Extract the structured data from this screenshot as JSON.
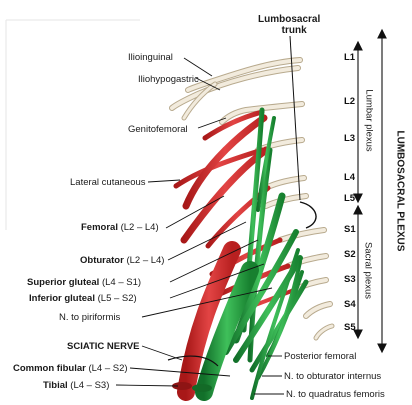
{
  "title": {
    "line1": "Lumbosacral",
    "line2": "trunk"
  },
  "segments": [
    "L1",
    "L2",
    "L3",
    "L4",
    "L5",
    "S1",
    "S2",
    "S3",
    "S4",
    "S5"
  ],
  "side_labels": {
    "lumbar_plexus": "Lumbar plexus",
    "sacral_plexus": "Sacral plexus",
    "lumbosacral_plexus": "LUMBOSACRAL PLEXUS"
  },
  "left_labels": {
    "ilioinguinal": "Ilioinguinal",
    "iliohypogastric": "Iliohypogastric",
    "genitofemoral": "Genitofemoral",
    "lateral_cutaneous": "Lateral cutaneous",
    "femoral_name": "Femoral",
    "femoral_roots": " (L2 – L4)",
    "obturator_name": "Obturator",
    "obturator_roots": " (L2 – L4)",
    "superior_gluteal_name": "Superior gluteal",
    "superior_gluteal_roots": " (L4 – S1)",
    "inferior_gluteal_name": "Inferior gluteal",
    "inferior_gluteal_roots": " (L5 – S2)",
    "piriformis": "N. to piriformis",
    "sciatic": "SCIATIC NERVE",
    "common_fibular_name": "Common fibular",
    "common_fibular_roots": " (L4 – S2)",
    "tibial_name": "Tibial",
    "tibial_roots": " (L4 – S3)"
  },
  "right_labels": {
    "posterior_femoral": "Posterior femoral",
    "obturator_internus": "N. to obturator internus",
    "quadratus_femoris": "N. to quadratus femoris"
  },
  "colors": {
    "red_nerve": "#d42a2a",
    "green_nerve": "#1f9a3c",
    "beige_nerve": "#e6dcc8",
    "text": "#1a1a1a"
  }
}
